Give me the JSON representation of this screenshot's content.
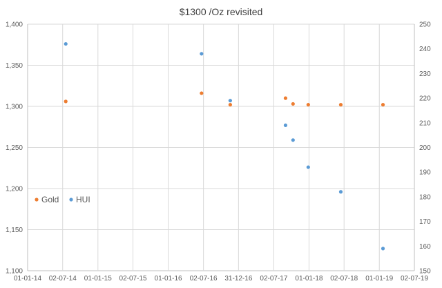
{
  "chart_data": {
    "type": "scatter",
    "title": "$1300 /Oz revisited",
    "legend_position": "left-bottom",
    "grid": true,
    "colors": {
      "gold": "#ed7d31",
      "hui": "#5b9bd5",
      "grid": "#d9d9d9",
      "axis": "#bfbfbf"
    },
    "x_axis": {
      "min": "2014-01-01",
      "max": "2019-07-02",
      "tick_dates": [
        "2014-01-01",
        "2014-07-02",
        "2015-01-01",
        "2015-07-02",
        "2016-01-01",
        "2016-07-02",
        "2016-12-31",
        "2017-07-02",
        "2018-01-01",
        "2018-07-02",
        "2019-01-01",
        "2019-07-02"
      ],
      "tick_labels": [
        "01-01-14",
        "02-07-14",
        "01-01-15",
        "02-07-15",
        "01-01-16",
        "02-07-16",
        "31-12-16",
        "02-07-17",
        "01-01-18",
        "02-07-18",
        "01-01-19",
        "02-07-19"
      ]
    },
    "y_left": {
      "min": 1100,
      "max": 1400,
      "ticks": [
        1100,
        1150,
        1200,
        1250,
        1300,
        1350,
        1400
      ],
      "tick_labels": [
        "1,100",
        "1,150",
        "1,200",
        "1,250",
        "1,300",
        "1,350",
        "1,400"
      ]
    },
    "y_right": {
      "min": 150,
      "max": 250,
      "ticks": [
        150,
        160,
        170,
        180,
        190,
        200,
        210,
        220,
        230,
        240,
        250
      ],
      "tick_labels": [
        "150",
        "160",
        "170",
        "180",
        "190",
        "200",
        "210",
        "220",
        "230",
        "240",
        "250"
      ]
    },
    "series": [
      {
        "name": "Gold",
        "axis": "left",
        "color": "#ed7d31",
        "points": [
          {
            "x": "2014-07-18",
            "y": 1306
          },
          {
            "x": "2016-06-22",
            "y": 1316
          },
          {
            "x": "2016-11-18",
            "y": 1302
          },
          {
            "x": "2017-09-01",
            "y": 1310
          },
          {
            "x": "2017-10-10",
            "y": 1303
          },
          {
            "x": "2017-12-28",
            "y": 1302
          },
          {
            "x": "2018-06-15",
            "y": 1302
          },
          {
            "x": "2019-01-20",
            "y": 1302
          }
        ]
      },
      {
        "name": "HUI",
        "axis": "right",
        "color": "#5b9bd5",
        "points": [
          {
            "x": "2014-07-18",
            "y": 242
          },
          {
            "x": "2016-06-22",
            "y": 238
          },
          {
            "x": "2016-11-18",
            "y": 219
          },
          {
            "x": "2017-09-01",
            "y": 209
          },
          {
            "x": "2017-10-10",
            "y": 203
          },
          {
            "x": "2017-12-28",
            "y": 192
          },
          {
            "x": "2018-06-15",
            "y": 182
          },
          {
            "x": "2019-01-20",
            "y": 159
          }
        ]
      }
    ]
  }
}
